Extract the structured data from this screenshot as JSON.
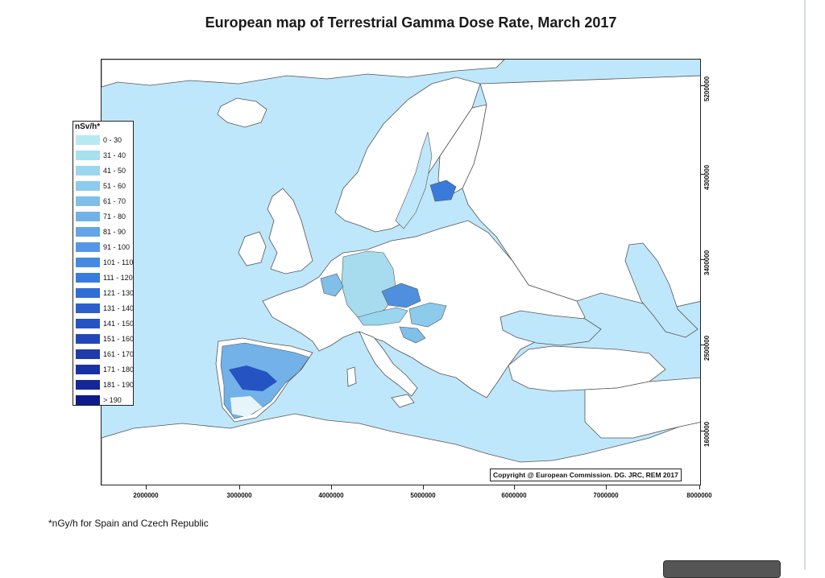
{
  "title": "European map of Terrestrial Gamma Dose Rate, March 2017",
  "legend": {
    "title": "nSv/h*",
    "items": [
      {
        "label": "0 - 30",
        "color": "#b7e9f1"
      },
      {
        "label": "31 - 40",
        "color": "#a7e0ef"
      },
      {
        "label": "41 - 50",
        "color": "#9ad6ee"
      },
      {
        "label": "51 - 60",
        "color": "#8ccbec"
      },
      {
        "label": "61 - 70",
        "color": "#7fbfea"
      },
      {
        "label": "71 - 80",
        "color": "#72b2e8"
      },
      {
        "label": "81 - 90",
        "color": "#64a5e6"
      },
      {
        "label": "91 - 100",
        "color": "#5597e4"
      },
      {
        "label": "101 - 110",
        "color": "#4689e1"
      },
      {
        "label": "111 - 120",
        "color": "#387bdc"
      },
      {
        "label": "121 - 130",
        "color": "#306dd5"
      },
      {
        "label": "131 - 140",
        "color": "#2b60cc"
      },
      {
        "label": "141 - 150",
        "color": "#2653c2"
      },
      {
        "label": "151 - 160",
        "color": "#2247b8"
      },
      {
        "label": "161 - 170",
        "color": "#1e3cae"
      },
      {
        "label": "171 - 180",
        "color": "#1a31a4"
      },
      {
        "label": "181 - 190",
        "color": "#16279a"
      },
      {
        "label": "> 190",
        "color": "#0d1a8c"
      }
    ]
  },
  "copyright": "Copyright @ European Commission. DG. JRC, REM 2017",
  "x_axis": {
    "ticks": [
      "2000000",
      "3000000",
      "4000000",
      "5000000",
      "6000000",
      "7000000",
      "8000000"
    ]
  },
  "y_axis": {
    "ticks": [
      "5200000",
      "4300000",
      "3400000",
      "2500000",
      "1600000"
    ]
  },
  "footnote": "*nGy/h for Spain and Czech Republic",
  "colors": {
    "sea": "#bfe7fb",
    "land": "#ffffff",
    "border": "#555555"
  }
}
